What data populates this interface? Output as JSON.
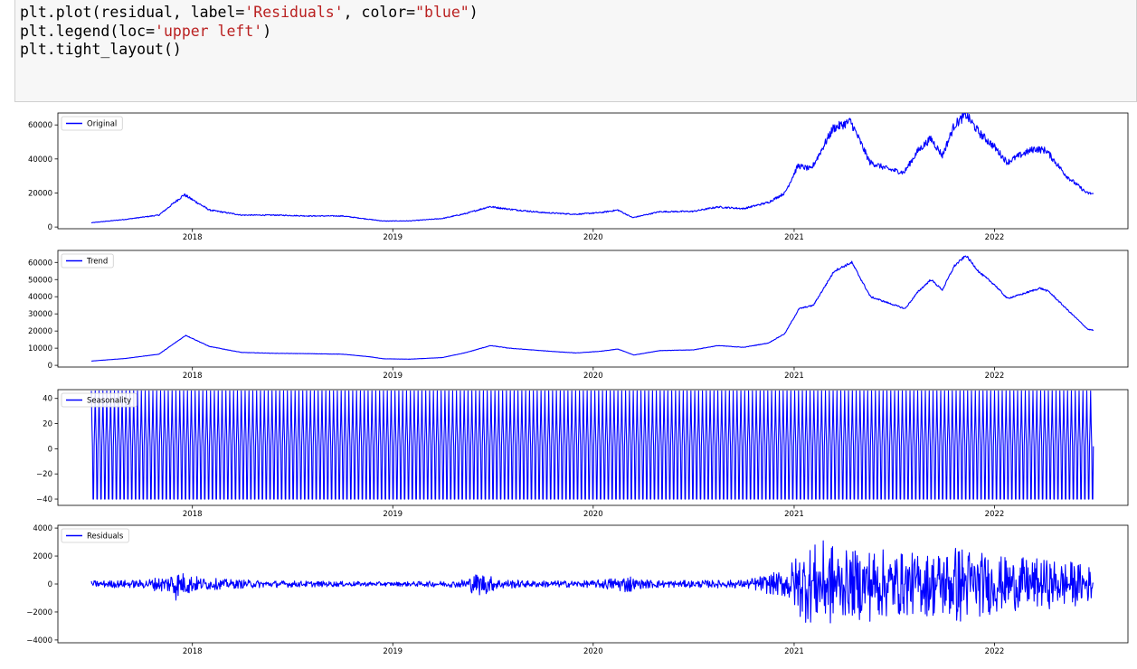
{
  "code": {
    "lines": [
      [
        {
          "t": "plt.plot(residual, label=",
          "k": "code"
        },
        {
          "t": "'Residuals'",
          "k": "str"
        },
        {
          "t": ", color=",
          "k": "code"
        },
        {
          "t": "\"blue\"",
          "k": "str"
        },
        {
          "t": ")",
          "k": "code"
        }
      ],
      [
        {
          "t": "plt.legend(loc=",
          "k": "code"
        },
        {
          "t": "'upper left'",
          "k": "str"
        },
        {
          "t": ")",
          "k": "code"
        }
      ],
      [
        {
          "t": "plt.tight_layout()",
          "k": "code"
        }
      ]
    ]
  },
  "chart_data": [
    {
      "type": "line",
      "legend": "Original",
      "legend_position": "upper-left",
      "color": "#0000ff",
      "x_ticks": [
        "2018",
        "2019",
        "2020",
        "2021",
        "2022"
      ],
      "x_range": [
        "2017-07-01",
        "2022-06-30"
      ],
      "y_ticks": [
        "0",
        "20000",
        "40000",
        "60000"
      ],
      "ylim": [
        -1000,
        67000
      ],
      "series": {
        "x": [
          "2017-07-01",
          "2017-09-01",
          "2017-11-01",
          "2017-12-17",
          "2018-02-01",
          "2018-04-01",
          "2018-06-01",
          "2018-08-01",
          "2018-10-01",
          "2018-11-20",
          "2018-12-15",
          "2019-02-01",
          "2019-04-01",
          "2019-05-15",
          "2019-06-26",
          "2019-08-01",
          "2019-10-01",
          "2019-12-01",
          "2020-01-15",
          "2020-02-15",
          "2020-03-13",
          "2020-05-01",
          "2020-07-01",
          "2020-08-15",
          "2020-10-01",
          "2020-11-15",
          "2020-12-15",
          "2021-01-08",
          "2021-02-01",
          "2021-03-13",
          "2021-04-14",
          "2021-05-19",
          "2021-06-22",
          "2021-07-20",
          "2021-08-15",
          "2021-09-07",
          "2021-09-28",
          "2021-10-20",
          "2021-11-10",
          "2021-12-05",
          "2022-01-01",
          "2022-01-24",
          "2022-02-15",
          "2022-03-15",
          "2022-04-05",
          "2022-05-12",
          "2022-06-18",
          "2022-06-30"
        ],
        "y": [
          2500,
          4500,
          7000,
          19000,
          10000,
          7000,
          7000,
          6500,
          6500,
          4500,
          3500,
          3600,
          5000,
          8000,
          12000,
          10500,
          8500,
          7500,
          8500,
          10000,
          5500,
          9000,
          9200,
          11800,
          10800,
          14500,
          20000,
          36000,
          34000,
          58000,
          62000,
          38000,
          34000,
          32000,
          45000,
          52000,
          42000,
          60000,
          66000,
          55000,
          47000,
          38000,
          42000,
          46000,
          45000,
          30000,
          20000,
          19500
        ]
      }
    },
    {
      "type": "line",
      "legend": "Trend",
      "legend_position": "upper-left",
      "color": "#0000ff",
      "x_ticks": [
        "2018",
        "2019",
        "2020",
        "2021",
        "2022"
      ],
      "x_range": [
        "2017-07-01",
        "2022-06-30"
      ],
      "y_ticks": [
        "0",
        "10000",
        "20000",
        "30000",
        "40000",
        "50000",
        "60000"
      ],
      "ylim": [
        -1000,
        67000
      ],
      "series": {
        "x": [
          "2017-07-01",
          "2017-09-01",
          "2017-11-01",
          "2017-12-20",
          "2018-02-01",
          "2018-04-01",
          "2018-06-01",
          "2018-08-01",
          "2018-10-01",
          "2018-11-20",
          "2018-12-15",
          "2019-02-01",
          "2019-04-01",
          "2019-05-15",
          "2019-06-28",
          "2019-08-01",
          "2019-10-01",
          "2019-12-01",
          "2020-01-15",
          "2020-02-15",
          "2020-03-15",
          "2020-05-01",
          "2020-07-01",
          "2020-08-15",
          "2020-10-01",
          "2020-11-15",
          "2020-12-15",
          "2021-01-10",
          "2021-02-05",
          "2021-03-15",
          "2021-04-16",
          "2021-05-20",
          "2021-06-25",
          "2021-07-22",
          "2021-08-15",
          "2021-09-07",
          "2021-09-28",
          "2021-10-20",
          "2021-11-10",
          "2021-12-05",
          "2022-01-01",
          "2022-01-24",
          "2022-02-15",
          "2022-03-25",
          "2022-04-10",
          "2022-05-15",
          "2022-06-20",
          "2022-06-30"
        ],
        "y": [
          2500,
          4000,
          6500,
          17500,
          11000,
          7500,
          7000,
          6800,
          6500,
          5000,
          3800,
          3600,
          4500,
          7500,
          11500,
          10000,
          8500,
          7200,
          8200,
          9500,
          6000,
          8600,
          9000,
          11500,
          10500,
          13000,
          18500,
          33000,
          35000,
          55000,
          60000,
          40000,
          36000,
          33000,
          43000,
          50000,
          44000,
          58000,
          64000,
          54000,
          47000,
          39000,
          41000,
          45000,
          43000,
          32000,
          21000,
          20500
        ]
      }
    },
    {
      "type": "line",
      "legend": "Seasonality",
      "legend_position": "upper-left",
      "color": "#0000ff",
      "x_ticks": [
        "2018",
        "2019",
        "2020",
        "2021",
        "2022"
      ],
      "x_range": [
        "2017-07-01",
        "2022-06-30"
      ],
      "y_ticks": [
        "40",
        "20",
        "0",
        "−20",
        "−40"
      ],
      "ylim": [
        -45,
        47
      ],
      "series": {
        "period_days": 7,
        "cycle_values": [
          46,
          20,
          2,
          -40,
          -40,
          2,
          20
        ]
      }
    },
    {
      "type": "line",
      "legend": "Residuals",
      "legend_position": "upper-left",
      "color": "#0000ff",
      "x_ticks": [
        "2018",
        "2019",
        "2020",
        "2021",
        "2022"
      ],
      "x_range": [
        "2017-07-01",
        "2022-06-30"
      ],
      "y_ticks": [
        "4000",
        "2000",
        "0",
        "−2000",
        "−4000"
      ],
      "ylim": [
        -4200,
        4200
      ],
      "series": {
        "x": [
          "2017-07-01",
          "2017-10-01",
          "2017-11-20",
          "2017-11-28",
          "2017-12-05",
          "2018-01-15",
          "2018-03-01",
          "2018-06-01",
          "2019-01-01",
          "2019-05-01",
          "2019-06-10",
          "2019-07-10",
          "2019-09-01",
          "2020-01-01",
          "2020-03-12",
          "2020-03-15",
          "2020-06-01",
          "2020-10-01",
          "2020-12-15",
          "2021-01-15",
          "2021-03-05",
          "2021-04-10",
          "2021-05-15",
          "2021-06-01",
          "2021-07-01",
          "2021-08-15",
          "2021-10-01",
          "2021-11-01",
          "2021-12-01",
          "2022-01-15",
          "2022-02-15",
          "2022-04-01",
          "2022-05-15",
          "2022-06-30"
        ],
        "amplitude": [
          250,
          300,
          700,
          1500,
          1000,
          500,
          350,
          250,
          150,
          250,
          900,
          400,
          250,
          250,
          700,
          350,
          250,
          300,
          1000,
          2700,
          3200,
          2300,
          2800,
          2600,
          2400,
          2200,
          2600,
          3000,
          2400,
          2000,
          1900,
          1800,
          1700,
          1300
        ]
      }
    }
  ]
}
